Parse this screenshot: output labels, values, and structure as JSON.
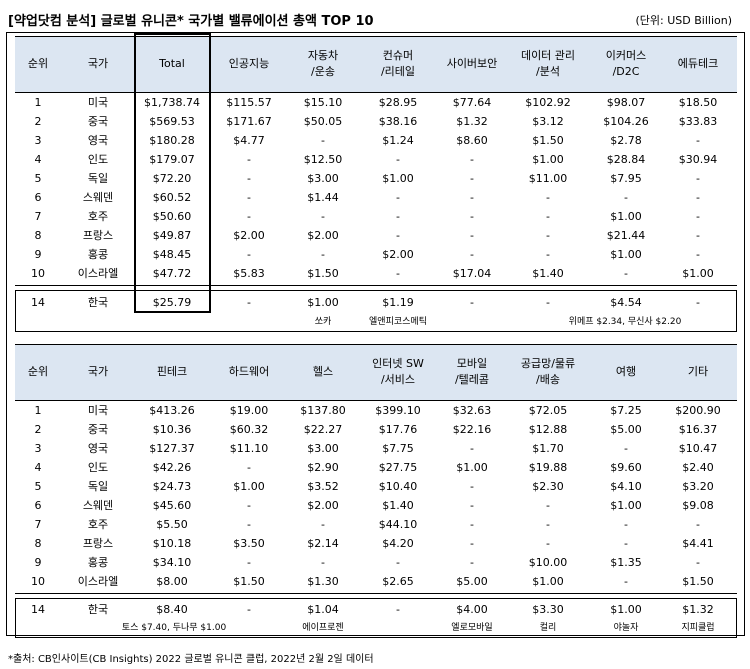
{
  "title": "[약업닷컴 분석] 글로벌 유니콘* 국가별 밸류에이션 총액 TOP 10",
  "unit": "(단위: USD Billion)",
  "footer": "*출처: CB인사이트(CB Insights) 2022 글로벌 유니콘 클럽, 2022년 2월 2일 데이터",
  "table1": {
    "headers": [
      "순위",
      "국가",
      "Total",
      "인공지능",
      "자동차\n/운송",
      "컨슈머\n/리테일",
      "사이버보안",
      "데이터 관리\n/분석",
      "이커머스\n/D2C",
      "에듀테크"
    ],
    "rows": [
      [
        "1",
        "미국",
        "$1,738.74",
        "$115.57",
        "$15.10",
        "$28.95",
        "$77.64",
        "$102.92",
        "$98.07",
        "$18.50"
      ],
      [
        "2",
        "중국",
        "$569.53",
        "$171.67",
        "$50.05",
        "$38.16",
        "$1.32",
        "$3.12",
        "$104.26",
        "$33.83"
      ],
      [
        "3",
        "영국",
        "$180.28",
        "$4.77",
        "-",
        "$1.24",
        "$8.60",
        "$1.50",
        "$2.78",
        "-"
      ],
      [
        "4",
        "인도",
        "$179.07",
        "-",
        "$12.50",
        "-",
        "-",
        "$1.00",
        "$28.84",
        "$30.94"
      ],
      [
        "5",
        "독일",
        "$72.20",
        "-",
        "$3.00",
        "$1.00",
        "-",
        "$11.00",
        "$7.95",
        "-"
      ],
      [
        "6",
        "스웨덴",
        "$60.52",
        "-",
        "$1.44",
        "-",
        "-",
        "-",
        "-",
        "-"
      ],
      [
        "7",
        "호주",
        "$50.60",
        "-",
        "-",
        "-",
        "-",
        "-",
        "$1.00",
        "-"
      ],
      [
        "8",
        "프랑스",
        "$49.87",
        "$2.00",
        "$2.00",
        "-",
        "-",
        "-",
        "$21.44",
        "-"
      ],
      [
        "9",
        "홍콩",
        "$48.45",
        "-",
        "-",
        "$2.00",
        "-",
        "-",
        "$1.00",
        "-"
      ],
      [
        "10",
        "이스라엘",
        "$47.72",
        "$5.83",
        "$1.50",
        "-",
        "$17.04",
        "$1.40",
        "-",
        "$1.00"
      ]
    ],
    "korea": [
      "14",
      "한국",
      "$25.79",
      "-",
      "$1.00",
      "$1.19",
      "-",
      "-",
      "$4.54",
      "-"
    ],
    "notes": [
      "쏘카",
      "엘앤피코스메틱",
      "위메프 $2.34, 무신사 $2.20"
    ]
  },
  "table2": {
    "headers": [
      "순위",
      "국가",
      "핀테크",
      "하드웨어",
      "헬스",
      "인터넷 SW\n/서비스",
      "모바일\n/텔레콤",
      "공급망/물류\n/배송",
      "여행",
      "기타"
    ],
    "rows": [
      [
        "1",
        "미국",
        "$413.26",
        "$19.00",
        "$137.80",
        "$399.10",
        "$32.63",
        "$72.05",
        "$7.25",
        "$200.90"
      ],
      [
        "2",
        "중국",
        "$10.36",
        "$60.32",
        "$22.27",
        "$17.76",
        "$22.16",
        "$12.88",
        "$5.00",
        "$16.37"
      ],
      [
        "3",
        "영국",
        "$127.37",
        "$11.10",
        "$3.00",
        "$7.75",
        "-",
        "$1.70",
        "-",
        "$10.47"
      ],
      [
        "4",
        "인도",
        "$42.26",
        "-",
        "$2.90",
        "$27.75",
        "$1.00",
        "$19.88",
        "$9.60",
        "$2.40"
      ],
      [
        "5",
        "독일",
        "$24.73",
        "$1.00",
        "$3.52",
        "$10.40",
        "-",
        "$2.30",
        "$4.10",
        "$3.20"
      ],
      [
        "6",
        "스웨덴",
        "$45.60",
        "-",
        "$2.00",
        "$1.40",
        "-",
        "-",
        "$1.00",
        "$9.08"
      ],
      [
        "7",
        "호주",
        "$5.50",
        "-",
        "-",
        "$44.10",
        "-",
        "-",
        "-",
        "-"
      ],
      [
        "8",
        "프랑스",
        "$10.18",
        "$3.50",
        "$2.14",
        "$4.20",
        "-",
        "-",
        "-",
        "$4.41"
      ],
      [
        "9",
        "홍콩",
        "$34.10",
        "-",
        "-",
        "-",
        "-",
        "$10.00",
        "$1.35",
        "-"
      ],
      [
        "10",
        "이스라엘",
        "$8.00",
        "$1.50",
        "$1.30",
        "$2.65",
        "$5.00",
        "$1.00",
        "-",
        "$1.50"
      ]
    ],
    "korea": [
      "14",
      "한국",
      "$8.40",
      "-",
      "$1.04",
      "-",
      "$4.00",
      "$3.30",
      "$1.00",
      "$1.32"
    ],
    "notes": [
      "토스 $7.40, 두나무 $1.00",
      "에이프로젠",
      "엘로모바일",
      "컬리",
      "야놀자",
      "지피클럽"
    ]
  }
}
